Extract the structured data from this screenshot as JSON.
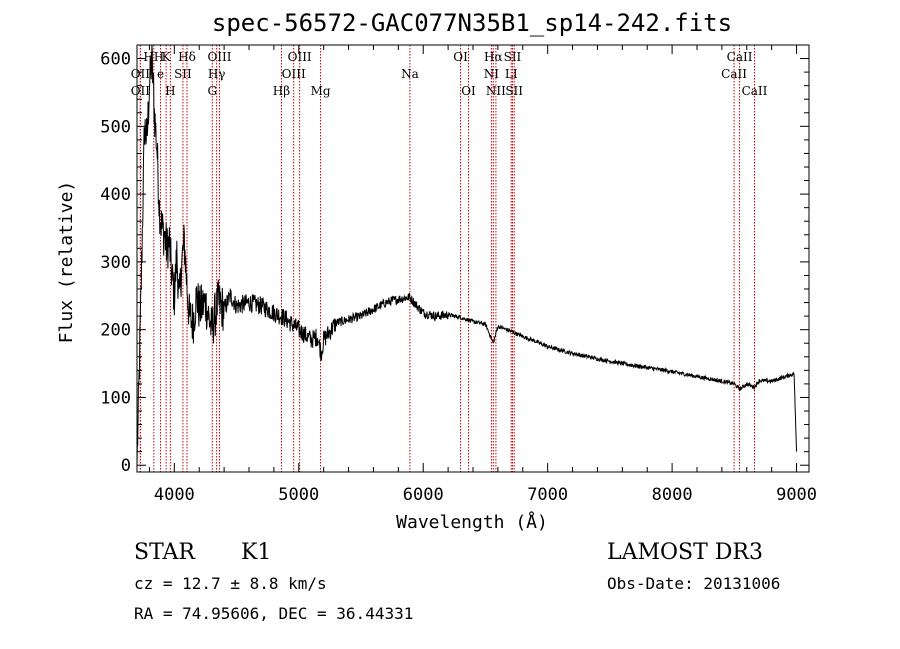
{
  "chart_data": {
    "type": "line",
    "title": "spec-56572-GAC077N35B1_sp14-242.fits",
    "xlabel": "Wavelength (Å)",
    "ylabel": "Flux (relative)",
    "xlim": [
      3700,
      9100
    ],
    "ylim": [
      -10,
      620
    ],
    "xticks": [
      4000,
      5000,
      6000,
      7000,
      8000,
      9000
    ],
    "yticks": [
      0,
      100,
      200,
      300,
      400,
      500,
      600
    ],
    "grid": false,
    "series": [
      {
        "x": [
          3700,
          3720,
          3740,
          3760,
          3780,
          3800,
          3820,
          3840,
          3860,
          3880,
          3900,
          3920,
          3940,
          3960,
          3980,
          4000,
          4020,
          4040,
          4060,
          4080,
          4100,
          4120,
          4150,
          4180,
          4200,
          4250,
          4300,
          4350,
          4400,
          4450,
          4500,
          4600,
          4700,
          4800,
          4860,
          4900,
          5000,
          5100,
          5150,
          5180,
          5200,
          5300,
          5400,
          5500,
          5600,
          5700,
          5800,
          5890,
          5950,
          6000,
          6100,
          6200,
          6300,
          6400,
          6500,
          6563,
          6600,
          6700,
          6800,
          6900,
          7000,
          7200,
          7400,
          7600,
          7800,
          8000,
          8200,
          8400,
          8500,
          8542,
          8600,
          8662,
          8700,
          8800,
          8900,
          8980,
          9000
        ],
        "y": [
          0,
          150,
          320,
          500,
          480,
          560,
          600,
          520,
          470,
          380,
          350,
          340,
          320,
          330,
          280,
          250,
          310,
          240,
          300,
          330,
          270,
          220,
          210,
          250,
          230,
          240,
          200,
          240,
          230,
          250,
          235,
          240,
          235,
          225,
          220,
          215,
          200,
          185,
          190,
          165,
          185,
          210,
          215,
          220,
          230,
          240,
          245,
          248,
          235,
          225,
          220,
          222,
          218,
          212,
          208,
          180,
          205,
          198,
          190,
          183,
          175,
          165,
          157,
          150,
          144,
          138,
          131,
          124,
          120,
          112,
          120,
          115,
          125,
          124,
          130,
          135,
          20
        ]
      }
    ],
    "spectral_lines": [
      {
        "label": "HH",
        "wavelength": 3835,
        "row": 1
      },
      {
        "label": "K",
        "wavelength": 3934,
        "row": 1
      },
      {
        "label": "Hδ",
        "wavelength": 4102,
        "row": 1
      },
      {
        "label": "OIII",
        "wavelength": 4363,
        "row": 1
      },
      {
        "label": "OIII",
        "wavelength": 5007,
        "row": 1
      },
      {
        "label": "OI",
        "wavelength": 6300,
        "row": 1
      },
      {
        "label": "Hα",
        "wavelength": 6563,
        "row": 1
      },
      {
        "label": "SII",
        "wavelength": 6717,
        "row": 1
      },
      {
        "label": "CaII",
        "wavelength": 8542,
        "row": 1
      },
      {
        "label": "OII",
        "wavelength": 3727,
        "row": 2
      },
      {
        "label": "e",
        "wavelength": 3889,
        "row": 2
      },
      {
        "label": "SII",
        "wavelength": 4069,
        "row": 2
      },
      {
        "label": "Hγ",
        "wavelength": 4340,
        "row": 2
      },
      {
        "label": "OIII",
        "wavelength": 4959,
        "row": 2
      },
      {
        "label": "Na",
        "wavelength": 5893,
        "row": 2
      },
      {
        "label": "NI",
        "wavelength": 6548,
        "row": 2
      },
      {
        "label": "LI",
        "wavelength": 6707,
        "row": 2
      },
      {
        "label": "CaII",
        "wavelength": 8498,
        "row": 2
      },
      {
        "label": "OII",
        "wavelength": 3727,
        "row": 3
      },
      {
        "label": "H",
        "wavelength": 3968,
        "row": 3
      },
      {
        "label": "G",
        "wavelength": 4305,
        "row": 3
      },
      {
        "label": "Hβ",
        "wavelength": 4861,
        "row": 3
      },
      {
        "label": "Mg",
        "wavelength": 5175,
        "row": 3
      },
      {
        "label": "OI",
        "wavelength": 6364,
        "row": 3
      },
      {
        "label": "NII",
        "wavelength": 6584,
        "row": 3
      },
      {
        "label": "SII",
        "wavelength": 6731,
        "row": 3
      },
      {
        "label": "CaII",
        "wavelength": 8662,
        "row": 3
      }
    ]
  },
  "info": {
    "class_label": "STAR",
    "subclass": "K1",
    "survey": "LAMOST DR3",
    "cz": "cz = 12.7 ± 8.8 km/s",
    "obs_date": "Obs-Date: 20131006",
    "coords": "RA =  74.95606, DEC =  36.44331"
  },
  "colors": {
    "line": "#000000",
    "spectral_marker": "#cc0000",
    "axes": "#000000"
  }
}
